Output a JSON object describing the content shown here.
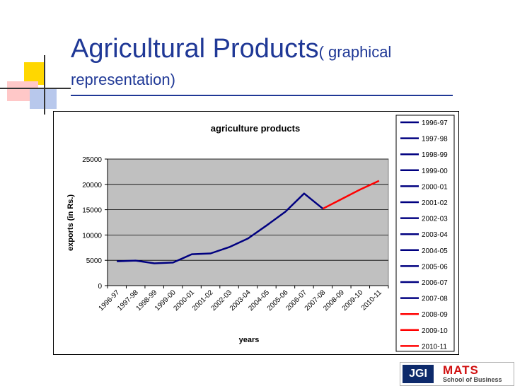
{
  "slide": {
    "title_main": "Agricultural Products",
    "title_sub": "( graphical",
    "title_line2": "representation)"
  },
  "logo": {
    "jgi": "JGI",
    "mats": "MATS",
    "school": "School of Business"
  },
  "colors": {
    "title": "#1f3896",
    "plot_background": "#c0c0c0",
    "series_actual": "#000080",
    "series_projected": "#ff0000"
  },
  "chart_data": {
    "type": "line",
    "title": "agriculture products",
    "xlabel": "years",
    "ylabel": "exports (in Rs.)",
    "ylim": [
      0,
      25000
    ],
    "yticks": [
      "0",
      "5000",
      "10000",
      "15000",
      "20000",
      "25000"
    ],
    "grid": true,
    "legend_position": "right",
    "categories": [
      "1996-97",
      "1997-98",
      "1998-99",
      "1999-00",
      "2000-01",
      "2001-02",
      "2002-03",
      "2003-04",
      "2004-05",
      "2005-06",
      "2006-07",
      "2007-08",
      "2008-09",
      "2009-10",
      "2010-11"
    ],
    "series": [
      {
        "color": "#000080",
        "values": [
          4800,
          4950,
          4400,
          4550,
          6200,
          6350,
          7600,
          9300,
          11900,
          14600,
          18200,
          15200,
          null,
          null,
          null
        ]
      },
      {
        "color": "#ff0000",
        "values": [
          null,
          null,
          null,
          null,
          null,
          null,
          null,
          null,
          null,
          null,
          null,
          15200,
          17100,
          19000,
          20700
        ]
      }
    ],
    "legend": [
      {
        "label": "1996-97",
        "color": "#000080"
      },
      {
        "label": "1997-98",
        "color": "#000080"
      },
      {
        "label": "1998-99",
        "color": "#000080"
      },
      {
        "label": "1999-00",
        "color": "#000080"
      },
      {
        "label": "2000-01",
        "color": "#000080"
      },
      {
        "label": "2001-02",
        "color": "#000080"
      },
      {
        "label": "2002-03",
        "color": "#000080"
      },
      {
        "label": "2003-04",
        "color": "#000080"
      },
      {
        "label": "2004-05",
        "color": "#000080"
      },
      {
        "label": "2005-06",
        "color": "#000080"
      },
      {
        "label": "2006-07",
        "color": "#000080"
      },
      {
        "label": "2007-08",
        "color": "#000080"
      },
      {
        "label": "2008-09",
        "color": "#ff0000"
      },
      {
        "label": "2009-10",
        "color": "#ff0000"
      },
      {
        "label": "2010-11",
        "color": "#ff0000"
      }
    ]
  }
}
